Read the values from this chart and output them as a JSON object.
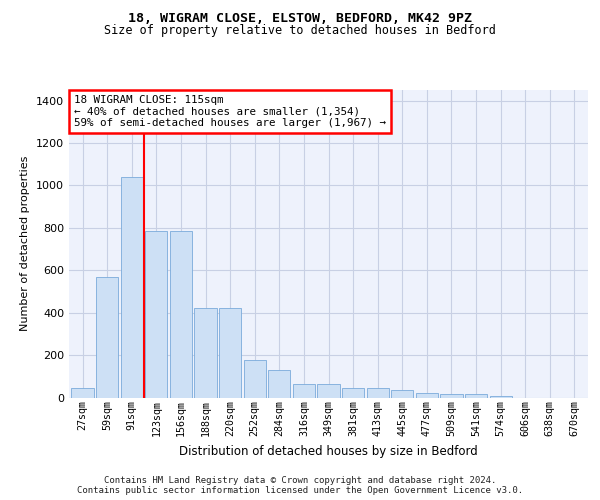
{
  "title1": "18, WIGRAM CLOSE, ELSTOW, BEDFORD, MK42 9PZ",
  "title2": "Size of property relative to detached houses in Bedford",
  "xlabel": "Distribution of detached houses by size in Bedford",
  "ylabel": "Number of detached properties",
  "categories": [
    "27sqm",
    "59sqm",
    "91sqm",
    "123sqm",
    "156sqm",
    "188sqm",
    "220sqm",
    "252sqm",
    "284sqm",
    "316sqm",
    "349sqm",
    "381sqm",
    "413sqm",
    "445sqm",
    "477sqm",
    "509sqm",
    "541sqm",
    "574sqm",
    "606sqm",
    "638sqm",
    "670sqm"
  ],
  "values": [
    45,
    570,
    1040,
    785,
    785,
    420,
    420,
    175,
    130,
    65,
    65,
    45,
    45,
    35,
    22,
    18,
    18,
    8,
    0,
    0,
    0
  ],
  "bar_color": "#cde0f5",
  "bar_edge_color": "#7aabdb",
  "vline_color": "red",
  "vline_pos": 2.5,
  "annotation_lines": [
    "18 WIGRAM CLOSE: 115sqm",
    "← 40% of detached houses are smaller (1,354)",
    "59% of semi-detached houses are larger (1,967) →"
  ],
  "ylim": [
    0,
    1450
  ],
  "yticks": [
    0,
    200,
    400,
    600,
    800,
    1000,
    1200,
    1400
  ],
  "footer1": "Contains HM Land Registry data © Crown copyright and database right 2024.",
  "footer2": "Contains public sector information licensed under the Open Government Licence v3.0.",
  "bg_color": "#eef2fc",
  "grid_color": "#c8d0e4"
}
